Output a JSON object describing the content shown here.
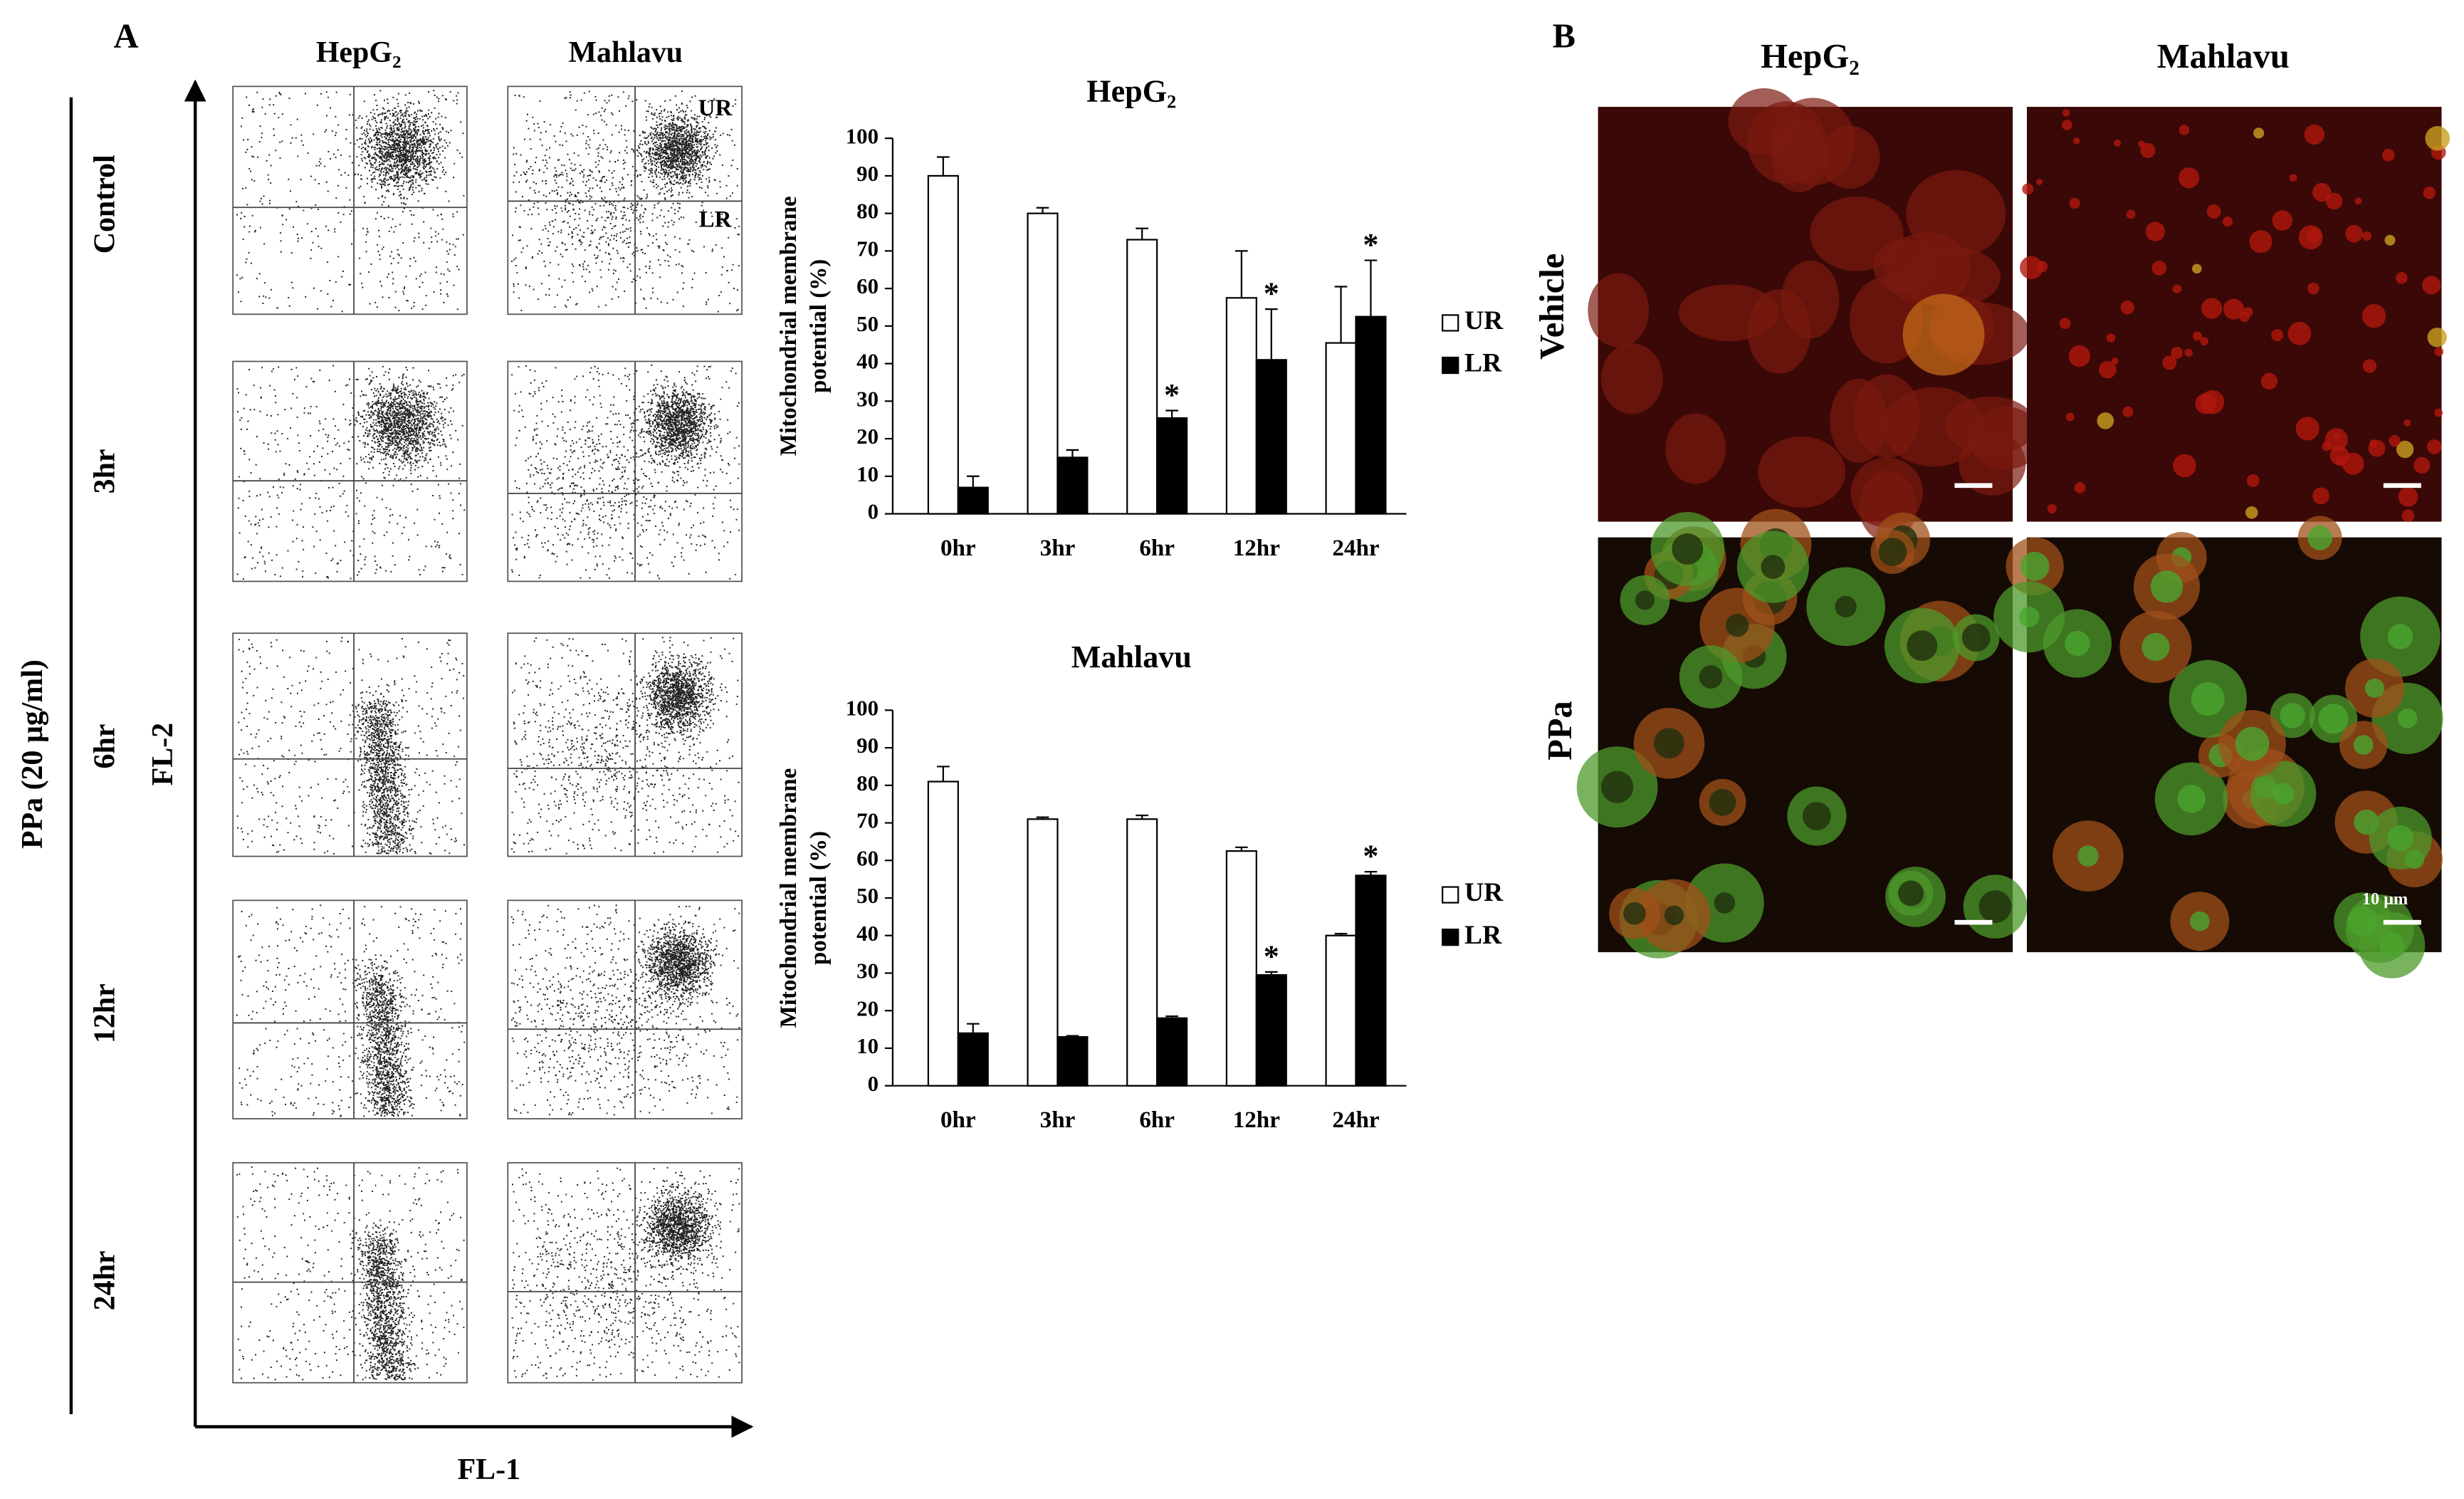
{
  "panel_a": {
    "label": "A",
    "col_labels": [
      "HepG₂",
      "Mahlavu"
    ],
    "row_labels": [
      "Control",
      "3hr",
      "6hr",
      "12hr",
      "24hr"
    ],
    "treatment": "PPa (20 μg/ml)",
    "y_axis": "FL-2",
    "x_axis": "FL-1",
    "quadrants": [
      "UR",
      "LR"
    ]
  },
  "panel_b": {
    "label": "B",
    "col_labels": [
      "HepG₂",
      "Mahlavu"
    ],
    "row_labels": [
      "Vehicle",
      "PPa"
    ],
    "scale_bar": "10 μm"
  },
  "chart_data": [
    {
      "type": "bar",
      "title": "HepG₂",
      "ylabel": [
        "Mitochondrial membrane",
        "potential (%)"
      ],
      "categories": [
        "0hr",
        "3hr",
        "6hr",
        "12hr",
        "24hr"
      ],
      "series": [
        {
          "name": "UR",
          "color": "#ffffff",
          "values": [
            90,
            80,
            73,
            57.5,
            45.5
          ],
          "errors": [
            5,
            1.5,
            3,
            12.5,
            15
          ],
          "significance": [
            null,
            null,
            null,
            null,
            null
          ]
        },
        {
          "name": "LR",
          "color": "#000000",
          "values": [
            7,
            15,
            25.5,
            41,
            52.5
          ],
          "errors": [
            3,
            2,
            2,
            13.5,
            15
          ],
          "significance": [
            null,
            null,
            "*",
            "*",
            "*"
          ]
        }
      ],
      "ylim": [
        0,
        100
      ],
      "yticks": [
        0,
        10,
        20,
        30,
        40,
        50,
        60,
        70,
        80,
        90,
        100
      ]
    },
    {
      "type": "bar",
      "title": "Mahlavu",
      "ylabel": [
        "Mitochondrial membrane",
        "potential (%)"
      ],
      "categories": [
        "0hr",
        "3hr",
        "6hr",
        "12hr",
        "24hr"
      ],
      "series": [
        {
          "name": "UR",
          "color": "#ffffff",
          "values": [
            81,
            71,
            71,
            62.5,
            40
          ],
          "errors": [
            4,
            0.5,
            1,
            1,
            0.5
          ],
          "significance": [
            null,
            null,
            null,
            null,
            null
          ]
        },
        {
          "name": "LR",
          "color": "#000000",
          "values": [
            14,
            13,
            18,
            29.5,
            56
          ],
          "errors": [
            2.5,
            0.3,
            0.5,
            0.8,
            1
          ],
          "significance": [
            null,
            null,
            null,
            "*",
            "*"
          ]
        }
      ],
      "ylim": [
        0,
        100
      ],
      "yticks": [
        0,
        10,
        20,
        30,
        40,
        50,
        60,
        70,
        80,
        90,
        100
      ]
    }
  ]
}
